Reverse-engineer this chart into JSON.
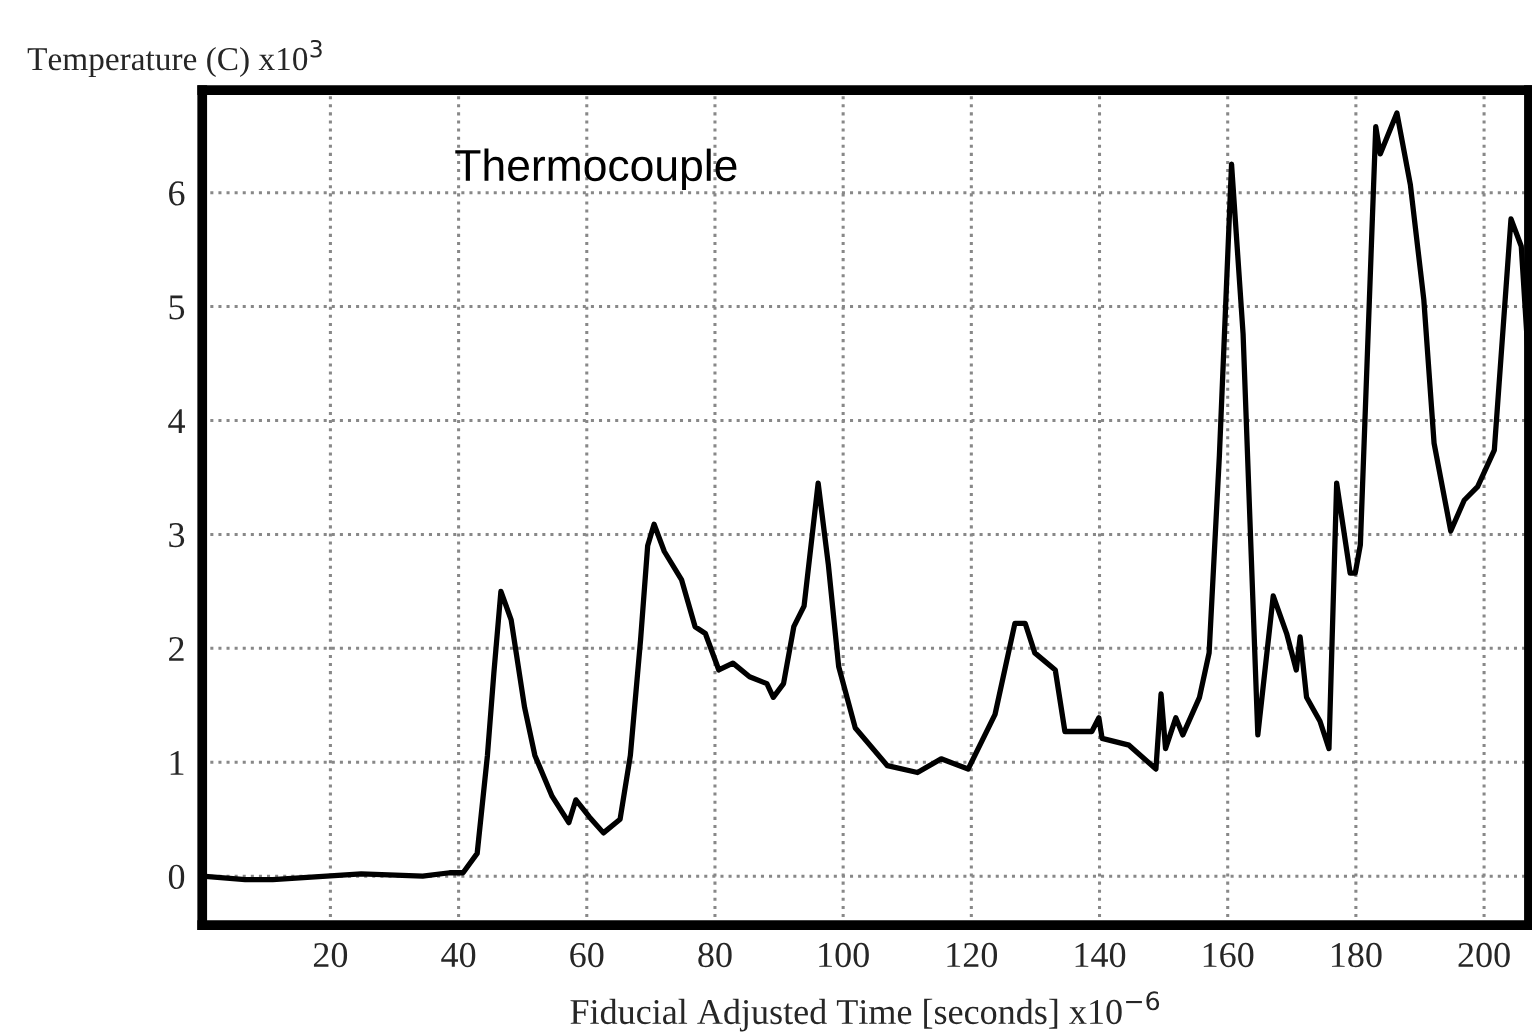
{
  "chart_data": {
    "type": "line",
    "xlabel": "Fiducial Adjusted Time [seconds] x10$^{−6}$",
    "ylabel": "Temperature (C) x10$^{3}$",
    "series": [
      {
        "name": "Thermocouple",
        "color": "#000000",
        "x": [
          0,
          6.7,
          11,
          24.8,
          34.4,
          38.6,
          40.7,
          42.9,
          44.5,
          45.5,
          46.6,
          48.2,
          50.3,
          51.9,
          54.6,
          57.2,
          58.3,
          60.4,
          62.6,
          65.2,
          66.8,
          68.4,
          69.5,
          70.5,
          72.1,
          74.8,
          76.9,
          78.5,
          80.6,
          82.8,
          85.4,
          88.1,
          89.1,
          90.7,
          92.3,
          93.9,
          96.1,
          97.7,
          99.3,
          101.9,
          106.9,
          111.6,
          115.3,
          119.5,
          123.7,
          126.8,
          128.4,
          129.9,
          133.1,
          134.6,
          138.8,
          139.9,
          140.4,
          144.6,
          148.8,
          149.6,
          150.3,
          151.9,
          153,
          155.6,
          157.1,
          158.7,
          160.6,
          162.4,
          164.7,
          167.1,
          169.2,
          170.7,
          171.3,
          172.3,
          174.4,
          175.8,
          177,
          179.1,
          179.9,
          180.7,
          183.1,
          183.8,
          186.4,
          188.5,
          190.6,
          192.2,
          194.8,
          196.9,
          199,
          201.6,
          204.2,
          205.8,
          207
        ],
        "values": [
          0,
          -0.03,
          -0.03,
          0.02,
          0,
          0.03,
          0.03,
          0.2,
          1.06,
          1.78,
          2.5,
          2.25,
          1.48,
          1.06,
          0.7,
          0.47,
          0.67,
          0.52,
          0.38,
          0.5,
          1.06,
          2.08,
          2.9,
          3.09,
          2.85,
          2.6,
          2.19,
          2.13,
          1.81,
          1.87,
          1.75,
          1.69,
          1.57,
          1.69,
          2.19,
          2.37,
          3.45,
          2.73,
          1.84,
          1.3,
          0.97,
          0.91,
          1.03,
          0.94,
          1.42,
          2.22,
          2.22,
          1.96,
          1.81,
          1.27,
          1.27,
          1.39,
          1.21,
          1.15,
          0.94,
          1.6,
          1.12,
          1.39,
          1.24,
          1.57,
          1.96,
          3.69,
          6.25,
          4.76,
          1.24,
          2.46,
          2.13,
          1.81,
          2.1,
          1.57,
          1.36,
          1.12,
          3.45,
          2.66,
          2.66,
          2.91,
          6.58,
          6.34,
          6.7,
          6.07,
          5.06,
          3.8,
          3.03,
          3.3,
          3.42,
          3.74,
          5.77,
          5.53,
          4.46
        ]
      }
    ],
    "xlim": [
      0,
      207
    ],
    "ylim": [
      -0.43,
      6.9
    ],
    "xticks": [
      20,
      40,
      60,
      80,
      100,
      120,
      140,
      160,
      180,
      200
    ],
    "yticks": [
      0,
      1,
      2,
      3,
      4,
      5,
      6
    ],
    "grid": true,
    "legend": false,
    "line_style": "solid",
    "marker": "none"
  }
}
